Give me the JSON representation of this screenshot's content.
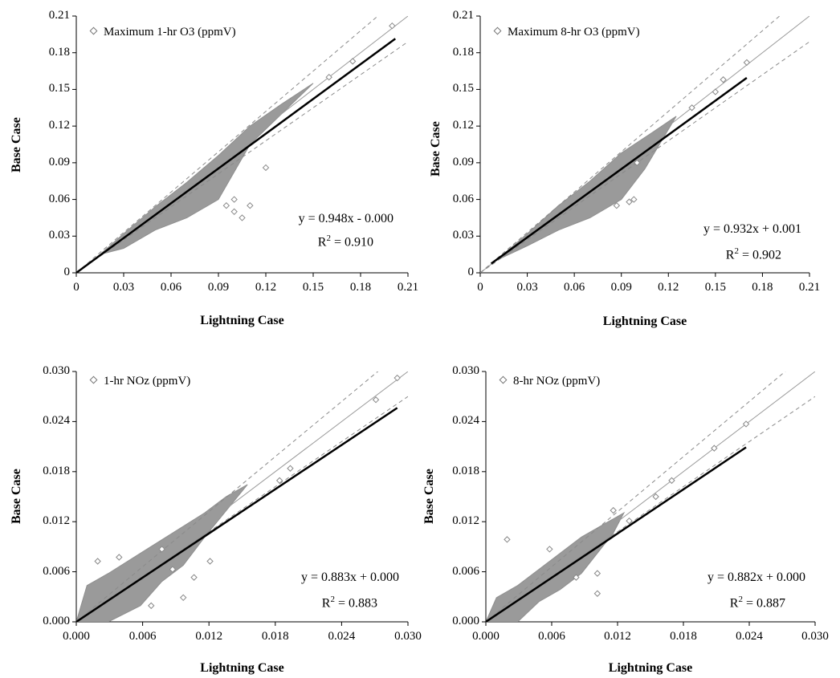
{
  "chart_data": [
    {
      "type": "scatter",
      "legend": "Maximum 1-hr O3 (ppmV)",
      "xlabel": "Lightning Case",
      "ylabel": "Base Case",
      "xlim": [
        0,
        0.21
      ],
      "ylim": [
        0,
        0.21
      ],
      "xticks": [
        "0",
        "0.03",
        "0.06",
        "0.09",
        "0.12",
        "0.15",
        "0.18",
        "0.21"
      ],
      "yticks": [
        "0",
        "0.03",
        "0.06",
        "0.09",
        "0.12",
        "0.15",
        "0.18",
        "0.21"
      ],
      "equation": "y = 0.948x - 0.000",
      "r2_label": "R",
      "r2_value": " = 0.910",
      "fit": {
        "slope": 0.948,
        "intercept": 0.0,
        "x_range": [
          0.0,
          0.202
        ]
      },
      "reference_lines": {
        "one_to_one": true,
        "band_slopes": [
          1.1,
          0.9
        ]
      },
      "cloud": {
        "x": [
          0.015,
          0.03,
          0.05,
          0.07,
          0.09,
          0.11,
          0.13,
          0.15,
          0.11,
          0.09,
          0.07,
          0.05,
          0.03
        ],
        "y": [
          0.015,
          0.032,
          0.054,
          0.074,
          0.096,
          0.12,
          0.138,
          0.155,
          0.105,
          0.06,
          0.045,
          0.035,
          0.02
        ]
      },
      "outliers": {
        "x": [
          0.16,
          0.175,
          0.2,
          0.12,
          0.11,
          0.105,
          0.1,
          0.095,
          0.1
        ],
        "y": [
          0.16,
          0.173,
          0.202,
          0.086,
          0.055,
          0.045,
          0.05,
          0.055,
          0.06
        ]
      }
    },
    {
      "type": "scatter",
      "legend": "Maximum 8-hr O3 (ppmV)",
      "xlabel": "Lightning Case",
      "ylabel": "Base Case",
      "xlim": [
        0,
        0.21
      ],
      "ylim": [
        0,
        0.21
      ],
      "xticks": [
        "0",
        "0.03",
        "0.06",
        "0.09",
        "0.12",
        "0.15",
        "0.18",
        "0.21"
      ],
      "yticks": [
        "0",
        "0.03",
        "0.06",
        "0.09",
        "0.12",
        "0.15",
        "0.18",
        "0.21"
      ],
      "equation": "y = 0.932x + 0.001",
      "r2_label": "R",
      "r2_value": " = 0.902",
      "fit": {
        "slope": 0.932,
        "intercept": 0.001,
        "x_range": [
          0.007,
          0.17
        ]
      },
      "reference_lines": {
        "one_to_one": true,
        "band_slopes": [
          1.1,
          0.9
        ]
      },
      "cloud": {
        "x": [
          0.01,
          0.03,
          0.05,
          0.07,
          0.09,
          0.11,
          0.125,
          0.105,
          0.09,
          0.07,
          0.05,
          0.03
        ],
        "y": [
          0.01,
          0.032,
          0.055,
          0.075,
          0.098,
          0.115,
          0.128,
          0.085,
          0.06,
          0.045,
          0.035,
          0.022
        ]
      },
      "outliers": {
        "x": [
          0.135,
          0.15,
          0.155,
          0.17,
          0.1,
          0.098,
          0.095,
          0.087
        ],
        "y": [
          0.135,
          0.148,
          0.158,
          0.172,
          0.09,
          0.06,
          0.058,
          0.055
        ]
      }
    },
    {
      "type": "scatter",
      "legend": "1-hr NOz (ppmV)",
      "xlabel": "Lightning Case",
      "ylabel": "Base Case",
      "xlim": [
        0,
        0.031
      ],
      "ylim": [
        0,
        0.031
      ],
      "xticks": [
        "0.000",
        "0.006",
        "0.012",
        "0.018",
        "0.024",
        "0.030"
      ],
      "yticks": [
        "0.000",
        "0.006",
        "0.012",
        "0.018",
        "0.024",
        "0.030"
      ],
      "equation": "y = 0.883x + 0.000",
      "r2_label": "R",
      "r2_value": " = 0.883",
      "fit": {
        "slope": 0.883,
        "intercept": 0.0,
        "x_range": [
          0.0,
          0.03
        ]
      },
      "reference_lines": {
        "one_to_one": true,
        "band_slopes": [
          1.1,
          0.9
        ]
      },
      "cloud": {
        "x": [
          0.0,
          0.001,
          0.003,
          0.006,
          0.009,
          0.012,
          0.014,
          0.016,
          0.012,
          0.01,
          0.008,
          0.006,
          0.003,
          0.0
        ],
        "y": [
          0.0,
          0.0045,
          0.006,
          0.0085,
          0.011,
          0.0135,
          0.0155,
          0.017,
          0.0105,
          0.007,
          0.005,
          0.002,
          0.0,
          0.0
        ]
      },
      "outliers": {
        "x": [
          0.002,
          0.004,
          0.008,
          0.009,
          0.011,
          0.0125,
          0.019,
          0.02,
          0.028,
          0.03,
          0.01,
          0.007
        ],
        "y": [
          0.0075,
          0.008,
          0.009,
          0.0065,
          0.0055,
          0.0075,
          0.0175,
          0.019,
          0.0275,
          0.0302,
          0.003,
          0.002
        ]
      }
    },
    {
      "type": "scatter",
      "legend": "8-hr NOz (ppmV)",
      "xlabel": "Lightning Case",
      "ylabel": "Base Case",
      "xlim": [
        0,
        0.031
      ],
      "ylim": [
        0,
        0.031
      ],
      "xticks": [
        "0.000",
        "0.006",
        "0.012",
        "0.018",
        "0.024",
        "0.030"
      ],
      "yticks": [
        "0.000",
        "0.006",
        "0.012",
        "0.018",
        "0.024",
        "0.030"
      ],
      "equation": "y = 0.882x + 0.000",
      "r2_label": "R",
      "r2_value": " = 0.887",
      "fit": {
        "slope": 0.882,
        "intercept": 0.0,
        "x_range": [
          0.0,
          0.0245
        ]
      },
      "reference_lines": {
        "one_to_one": true,
        "band_slopes": [
          1.1,
          0.9
        ]
      },
      "cloud": {
        "x": [
          0.0,
          0.001,
          0.003,
          0.006,
          0.009,
          0.011,
          0.013,
          0.012,
          0.009,
          0.007,
          0.005,
          0.003,
          0.0
        ],
        "y": [
          0.0,
          0.003,
          0.0045,
          0.0075,
          0.0105,
          0.012,
          0.0135,
          0.011,
          0.006,
          0.004,
          0.0025,
          0.0,
          0.0
        ]
      },
      "outliers": {
        "x": [
          0.002,
          0.006,
          0.0105,
          0.012,
          0.0135,
          0.016,
          0.0175,
          0.0215,
          0.0245,
          0.0105,
          0.0085
        ],
        "y": [
          0.0102,
          0.009,
          0.0035,
          0.0138,
          0.0125,
          0.0155,
          0.0175,
          0.0215,
          0.0245,
          0.006,
          0.0055
        ]
      }
    }
  ]
}
